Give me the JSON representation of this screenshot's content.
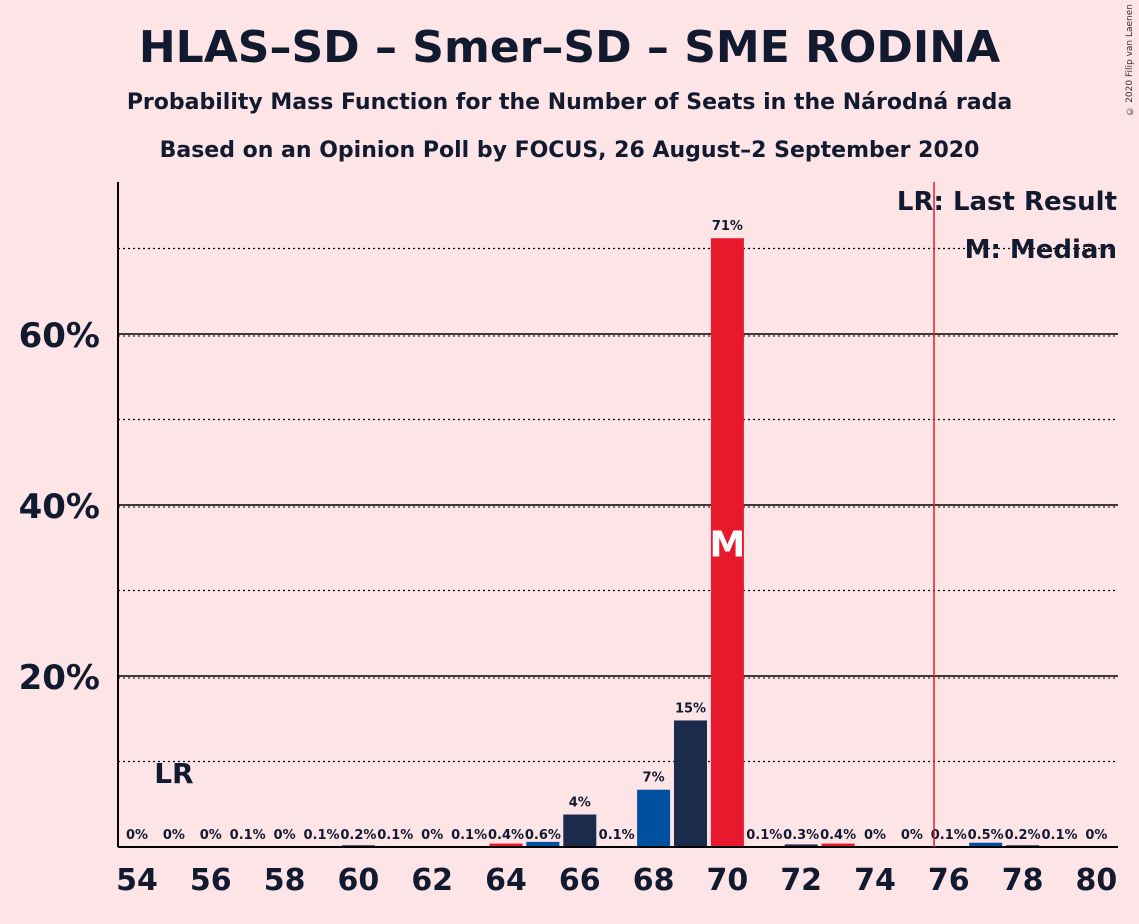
{
  "header": {
    "title": "HLAS–SD – Smer–SD – SME RODINA",
    "subtitle": "Probability Mass Function for the Number of Seats in the Národná rada",
    "subtitle2": "Based on an Opinion Poll by FOCUS, 26 August–2 September 2020",
    "copyright": "© 2020 Filip van Laenen"
  },
  "chart_data": {
    "type": "bar",
    "x": [
      54,
      55,
      56,
      57,
      58,
      59,
      60,
      61,
      62,
      63,
      64,
      65,
      66,
      67,
      68,
      69,
      70,
      71,
      72,
      73,
      74,
      75,
      76,
      77,
      78,
      79,
      80
    ],
    "values": [
      0,
      0,
      0,
      0.1,
      0,
      0.1,
      0.2,
      0.1,
      0,
      0.1,
      0.4,
      0.6,
      4,
      0.1,
      7,
      15,
      71,
      0.1,
      0.3,
      0.4,
      0,
      0,
      0.1,
      0.5,
      0.2,
      0.1,
      0
    ],
    "plot_values": [
      0,
      0,
      0,
      0.1,
      0,
      0.1,
      0.2,
      0.1,
      0,
      0.1,
      0.4,
      0.6,
      3.8,
      0.1,
      6.7,
      14.8,
      71.2,
      0.1,
      0.3,
      0.4,
      0,
      0,
      0.1,
      0.5,
      0.2,
      0.1,
      0
    ],
    "data_labels": [
      "0%",
      "0%",
      "0%",
      "0.1%",
      "0%",
      "0.1%",
      "0.2%",
      "0.1%",
      "0%",
      "0.1%",
      "0.4%",
      "0.6%",
      "4%",
      "0.1%",
      "7%",
      "15%",
      "71%",
      "0.1%",
      "0.3%",
      "0.4%",
      "0%",
      "0%",
      "0.1%",
      "0.5%",
      "0.2%",
      "0.1%",
      "0%"
    ],
    "bar_colors": [
      "#1a2b4c",
      "#1a2b4c",
      "#1a2b4c",
      "#1a2b4c",
      "#1a2b4c",
      "#1a2b4c",
      "#1a2b4c",
      "#1a2b4c",
      "#1a2b4c",
      "#1a2b4c",
      "#e8192c",
      "#0050a0",
      "#1a2b4c",
      "#1a2b4c",
      "#0050a0",
      "#1a2b4c",
      "#e8192c",
      "#1a2b4c",
      "#1a2b4c",
      "#e8192c",
      "#1a2b4c",
      "#1a2b4c",
      "#1a2b4c",
      "#0050a0",
      "#1a2b4c",
      "#1a2b4c",
      "#1a2b4c"
    ],
    "x_ticks": [
      "54",
      "56",
      "58",
      "60",
      "62",
      "64",
      "66",
      "68",
      "70",
      "72",
      "74",
      "76",
      "78",
      "80"
    ],
    "y_ticks": [
      "20%",
      "40%",
      "60%"
    ],
    "y_tick_values": [
      20,
      40,
      60
    ],
    "y_dotted_values": [
      10,
      30,
      50,
      70
    ],
    "ylim": [
      0,
      78
    ],
    "median": 70,
    "median_label": "M",
    "last_result": 55,
    "last_result_label": "LR",
    "last_result_line_x": 75.6,
    "legend": [
      "LR: Last Result",
      "M: Median"
    ],
    "legend_position": "top-right",
    "colors": {
      "axis": "#000000",
      "lr_line": "#e8192c",
      "background": "#fde4e6"
    }
  }
}
